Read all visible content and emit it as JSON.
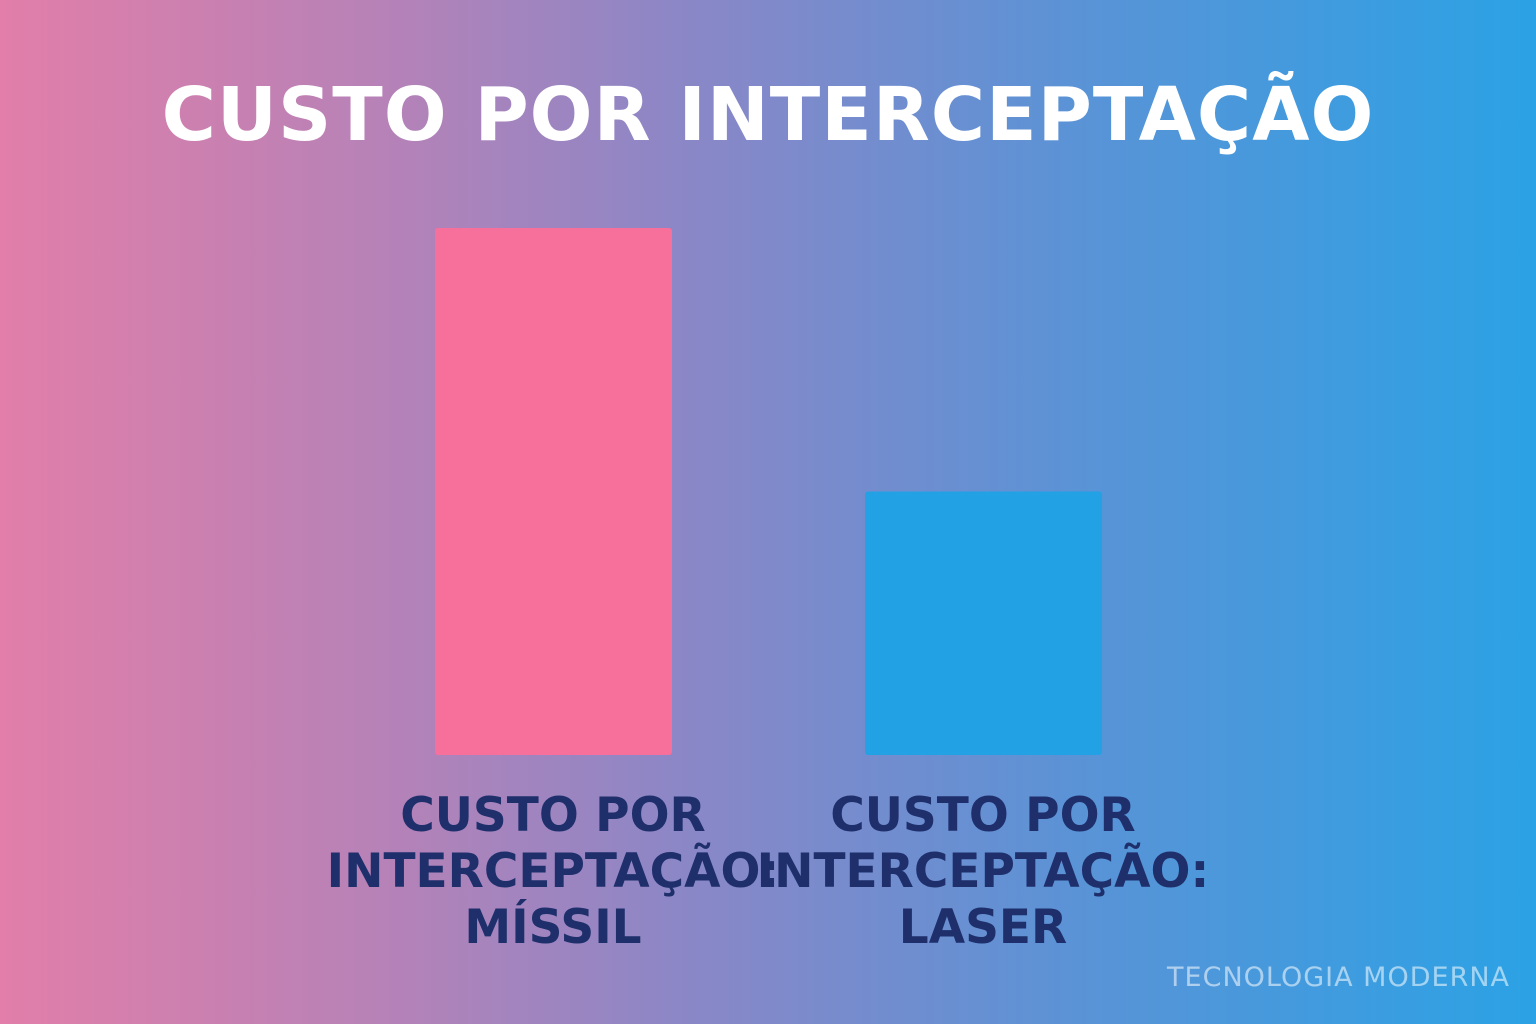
{
  "chart_data": {
    "type": "bar",
    "title": "CUSTO POR INTERCEPTAÇÃO",
    "categories": [
      "CUSTO POR\nINTERCEPTAÇÃO:\nMÍSSIL",
      "CUSTO POR\nINTERCEPTAÇÃO:\nLASER"
    ],
    "values": [
      100,
      50
    ],
    "colors": [
      "#f76f9b",
      "#22a1e5"
    ],
    "ylim": [
      0,
      100
    ],
    "grid": false,
    "legend": "none",
    "xlabel": "",
    "ylabel": ""
  },
  "watermark": "TECNOLOGIA MODERNA"
}
